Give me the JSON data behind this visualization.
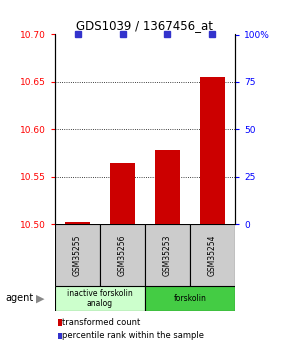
{
  "title": "GDS1039 / 1367456_at",
  "samples": [
    "GSM35255",
    "GSM35256",
    "GSM35253",
    "GSM35254"
  ],
  "red_values": [
    10.502,
    10.565,
    10.578,
    10.655
  ],
  "blue_values": [
    100,
    100,
    100,
    100
  ],
  "ylim_left": [
    10.5,
    10.7
  ],
  "ylim_right": [
    0,
    100
  ],
  "yticks_left": [
    10.5,
    10.55,
    10.6,
    10.65,
    10.7
  ],
  "yticks_right": [
    0,
    25,
    50,
    75,
    100
  ],
  "ytick_labels_right": [
    "0",
    "25",
    "50",
    "75",
    "100%"
  ],
  "bar_color": "#cc0000",
  "dot_color": "#3333cc",
  "groups": [
    {
      "label": "inactive forskolin\nanalog",
      "color": "#ccffcc",
      "indices": [
        0,
        1
      ]
    },
    {
      "label": "forskolin",
      "color": "#44cc44",
      "indices": [
        2,
        3
      ]
    }
  ],
  "legend_items": [
    {
      "color": "#cc0000",
      "label": "transformed count"
    },
    {
      "color": "#3333cc",
      "label": "percentile rank within the sample"
    }
  ],
  "agent_label": "agent",
  "bar_bottom": 10.5,
  "bar_width": 0.55,
  "label_box_color": "#cccccc"
}
